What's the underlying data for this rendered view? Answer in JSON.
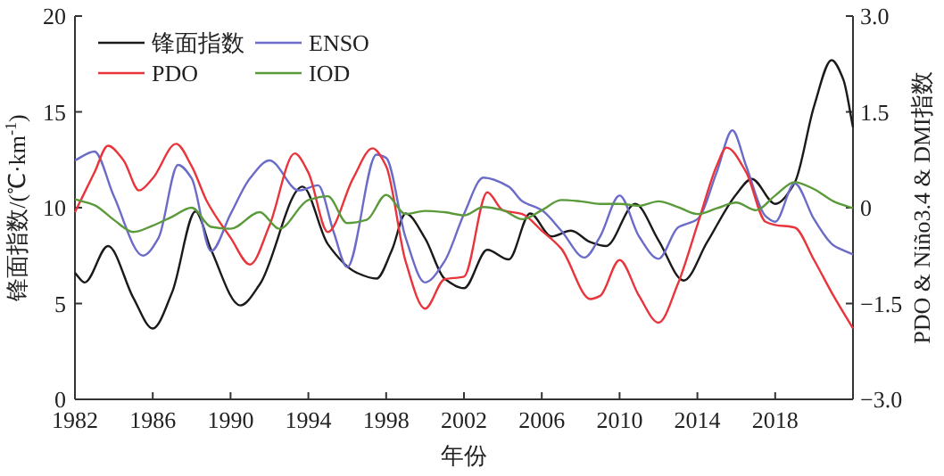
{
  "chart_data": {
    "type": "line",
    "xlabel": "年份",
    "ylabel": "锋面指数/(℃·km$^{-1}$)",
    "y2label": "PDO & Niño3.4 & DMI指数",
    "xlim": [
      1982,
      2022
    ],
    "xticks": [
      1982,
      1986,
      1990,
      1994,
      1998,
      2002,
      2006,
      2010,
      2014,
      2018
    ],
    "ylim": [
      0,
      20
    ],
    "yticks": [
      0,
      5,
      10,
      15,
      20
    ],
    "y2lim": [
      -3,
      3
    ],
    "y2ticks": [
      {
        "value": 3,
        "label": "3.0"
      },
      {
        "value": 1.5,
        "label": "1.5"
      },
      0,
      {
        "value": -1.5,
        "label": "−1.5"
      },
      {
        "value": -3,
        "label": "−3.0"
      }
    ],
    "legend": "top left",
    "grid": false,
    "series": [
      {
        "name": "锋面指数",
        "color": "#1a1a1a",
        "x": [
          1982,
          1982.5,
          1983.7,
          1985,
          1986,
          1987,
          1988.2,
          1989,
          1990.5,
          1991.5,
          1993.7,
          1995,
          1996.5,
          1997.5,
          1998.3,
          1999,
          2000,
          2001,
          2002,
          2003.2,
          2004.3,
          2005.4,
          2006.5,
          2007.5,
          2008.5,
          2009.3,
          2010.8,
          2012,
          2013.3,
          2014.5,
          2016,
          2016.8,
          2018,
          2019,
          2020,
          2020.9,
          2021.5,
          2022
        ],
        "values": [
          6.6,
          6.1,
          8.0,
          5.3,
          3.7,
          5.6,
          9.8,
          7.8,
          4.9,
          6.0,
          11.1,
          8.1,
          6.6,
          6.3,
          7.8,
          9.7,
          8.4,
          6.3,
          5.8,
          7.8,
          7.3,
          9.7,
          8.5,
          8.8,
          8.2,
          8.0,
          10.2,
          8.3,
          6.2,
          8.2,
          10.7,
          11.5,
          10.2,
          11.3,
          15.3,
          17.7,
          16.7,
          14.2
        ]
      },
      {
        "name": "ENSO",
        "color": "#6b6bc8",
        "axis": "y2",
        "x": [
          1982,
          1983,
          1984,
          1985.5,
          1986.3,
          1987.3,
          1988,
          1989,
          1990,
          1991,
          1992,
          1993.5,
          1994.5,
          1995.3,
          1996,
          1997.5,
          1998,
          1999,
          2000,
          2001,
          2002,
          2003,
          2004.3,
          2005,
          2006,
          2007,
          2008.2,
          2009,
          2010,
          2011,
          2012,
          2013,
          2014,
          2015,
          2015.8,
          2016.5,
          2017.5,
          2018,
          2019,
          2020,
          2021,
          2022
        ],
        "values": [
          0.74,
          0.88,
          0.18,
          -0.75,
          -0.47,
          0.67,
          0.46,
          -0.68,
          -0.1,
          0.46,
          0.74,
          0.27,
          0.35,
          -0.38,
          -0.93,
          0.83,
          0.78,
          -0.47,
          -1.17,
          -0.84,
          -0.1,
          0.47,
          0.33,
          0.1,
          -0.04,
          -0.36,
          -0.78,
          -0.45,
          0.19,
          -0.45,
          -0.8,
          -0.31,
          -0.18,
          0.56,
          1.21,
          0.66,
          -0.13,
          -0.22,
          0.38,
          -0.18,
          -0.59,
          -0.73
        ]
      },
      {
        "name": "PDO",
        "color": "#e8343a",
        "axis": "y2",
        "x": [
          1982,
          1983,
          1983.7,
          1984.5,
          1985.3,
          1986,
          1987.2,
          1988,
          1988.8,
          1990,
          1991,
          1992,
          1993.3,
          1994,
          1995,
          1996.3,
          1997.3,
          1998,
          1999,
          2000,
          2001,
          2002,
          2003.2,
          2004,
          2005,
          2006,
          2007,
          2008.5,
          2009,
          2010,
          2011,
          2012,
          2013,
          2014,
          2015,
          2015.5,
          2016.5,
          2017.5,
          2018,
          2019,
          2020,
          2021,
          2022
        ],
        "values": [
          -0.07,
          0.55,
          0.97,
          0.74,
          0.27,
          0.46,
          1.0,
          0.65,
          0.09,
          -0.47,
          -0.89,
          -0.28,
          0.85,
          0.55,
          -0.38,
          0.46,
          0.93,
          0.65,
          -0.84,
          -1.58,
          -1.12,
          -1.08,
          0.24,
          -0.04,
          -0.1,
          -0.36,
          -0.64,
          -1.43,
          -1.38,
          -0.82,
          -1.38,
          -1.8,
          -1.19,
          -0.27,
          0.66,
          0.94,
          0.56,
          -0.22,
          -0.27,
          -0.31,
          -0.82,
          -1.38,
          -1.89
        ]
      },
      {
        "name": "IOD",
        "color": "#5a9a3a",
        "axis": "y2",
        "x": [
          1982,
          1983,
          1984,
          1985,
          1986,
          1987,
          1988,
          1989,
          1990,
          1991.5,
          1992.5,
          1994,
          1995,
          1996,
          1997,
          1998,
          1999,
          2000,
          2001,
          2002,
          2003,
          2004,
          2005,
          2006,
          2007,
          2008,
          2009,
          2010,
          2011,
          2012,
          2013,
          2014,
          2015,
          2016,
          2017,
          2018,
          2019,
          2020,
          2021,
          2022
        ],
        "values": [
          0.13,
          0.04,
          -0.19,
          -0.38,
          -0.28,
          -0.14,
          0,
          -0.3,
          -0.33,
          -0.07,
          -0.33,
          0.12,
          0.18,
          -0.24,
          -0.19,
          0.2,
          -0.1,
          -0.05,
          -0.07,
          -0.12,
          0.01,
          -0.04,
          -0.18,
          -0.04,
          0.12,
          0.1,
          0.06,
          0.06,
          0.03,
          0.1,
          0.01,
          -0.1,
          -0.01,
          0.08,
          -0.04,
          0.19,
          0.4,
          0.29,
          0.1,
          -0.01
        ]
      }
    ]
  }
}
